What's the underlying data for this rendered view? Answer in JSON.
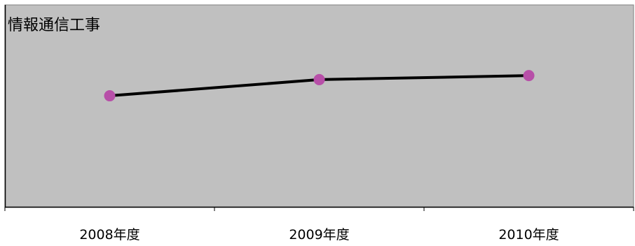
{
  "chart_data": {
    "type": "line",
    "title": "情報通信工事",
    "categories": [
      "2008年度",
      "2009年度",
      "2010年度"
    ],
    "series": [
      {
        "values": [
          0.55,
          0.63,
          0.65
        ]
      }
    ],
    "ylim": [
      0,
      1
    ],
    "grid": false,
    "legend": "none",
    "xlabel": "",
    "ylabel": "",
    "colors": {
      "plot_background": "#c0c0c0",
      "line": "#000000",
      "marker": "#b74fa8",
      "axis": "#000000"
    }
  }
}
